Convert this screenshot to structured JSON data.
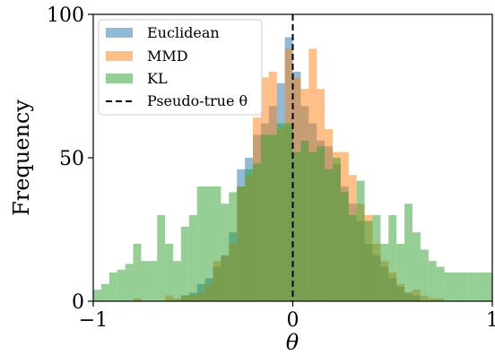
{
  "chart_data": {
    "type": "histogram",
    "xlabel": "θ",
    "ylabel": "Frequency",
    "xlim": [
      -1,
      1
    ],
    "ylim": [
      0,
      100
    ],
    "x_ticks": [
      -1,
      0,
      1
    ],
    "x_tick_labels": [
      "−1",
      "0",
      "1"
    ],
    "y_ticks": [
      0,
      50,
      100
    ],
    "y_tick_labels": [
      "0",
      "50",
      "100"
    ],
    "grid": false,
    "legend_position": "top-left",
    "reference_line": {
      "x": 0,
      "style": "dashed",
      "color": "#000000",
      "label": "Pseudo-true θ"
    },
    "series": [
      {
        "name": "Euclidean",
        "color": "#1f77b4",
        "bins": [
          {
            "x0": -0.56,
            "x1": -0.52,
            "count": 2
          },
          {
            "x0": -0.52,
            "x1": -0.48,
            "count": 3
          },
          {
            "x0": -0.48,
            "x1": -0.44,
            "count": 6
          },
          {
            "x0": -0.44,
            "x1": -0.4,
            "count": 8
          },
          {
            "x0": -0.4,
            "x1": -0.36,
            "count": 12
          },
          {
            "x0": -0.36,
            "x1": -0.32,
            "count": 16
          },
          {
            "x0": -0.32,
            "x1": -0.28,
            "count": 24
          },
          {
            "x0": -0.28,
            "x1": -0.24,
            "count": 46
          },
          {
            "x0": -0.24,
            "x1": -0.2,
            "count": 50
          },
          {
            "x0": -0.2,
            "x1": -0.16,
            "count": 58
          },
          {
            "x0": -0.16,
            "x1": -0.12,
            "count": 62
          },
          {
            "x0": -0.12,
            "x1": -0.08,
            "count": 68
          },
          {
            "x0": -0.08,
            "x1": -0.04,
            "count": 76
          },
          {
            "x0": -0.04,
            "x1": 0.0,
            "count": 92
          },
          {
            "x0": 0.0,
            "x1": 0.04,
            "count": 80
          },
          {
            "x0": 0.04,
            "x1": 0.08,
            "count": 68
          },
          {
            "x0": 0.08,
            "x1": 0.12,
            "count": 62
          },
          {
            "x0": 0.12,
            "x1": 0.16,
            "count": 56
          },
          {
            "x0": 0.16,
            "x1": 0.2,
            "count": 54
          },
          {
            "x0": 0.2,
            "x1": 0.24,
            "count": 48
          },
          {
            "x0": 0.24,
            "x1": 0.28,
            "count": 40
          },
          {
            "x0": 0.28,
            "x1": 0.32,
            "count": 34
          },
          {
            "x0": 0.32,
            "x1": 0.36,
            "count": 28
          },
          {
            "x0": 0.36,
            "x1": 0.4,
            "count": 20
          },
          {
            "x0": 0.4,
            "x1": 0.44,
            "count": 16
          },
          {
            "x0": 0.44,
            "x1": 0.48,
            "count": 12
          },
          {
            "x0": 0.48,
            "x1": 0.52,
            "count": 8
          },
          {
            "x0": 0.52,
            "x1": 0.56,
            "count": 5
          },
          {
            "x0": 0.56,
            "x1": 0.6,
            "count": 3
          },
          {
            "x0": 0.6,
            "x1": 0.64,
            "count": 2
          }
        ]
      },
      {
        "name": "MMD",
        "color": "#ff7f0e",
        "bins": [
          {
            "x0": -0.8,
            "x1": -0.76,
            "count": 1
          },
          {
            "x0": -0.64,
            "x1": -0.6,
            "count": 2
          },
          {
            "x0": -0.6,
            "x1": -0.56,
            "count": 1
          },
          {
            "x0": -0.56,
            "x1": -0.52,
            "count": 2
          },
          {
            "x0": -0.52,
            "x1": -0.48,
            "count": 2
          },
          {
            "x0": -0.48,
            "x1": -0.44,
            "count": 3
          },
          {
            "x0": -0.44,
            "x1": -0.4,
            "count": 6
          },
          {
            "x0": -0.4,
            "x1": -0.36,
            "count": 14
          },
          {
            "x0": -0.36,
            "x1": -0.32,
            "count": 16
          },
          {
            "x0": -0.32,
            "x1": -0.28,
            "count": 20
          },
          {
            "x0": -0.28,
            "x1": -0.24,
            "count": 40
          },
          {
            "x0": -0.24,
            "x1": -0.2,
            "count": 44
          },
          {
            "x0": -0.2,
            "x1": -0.16,
            "count": 64
          },
          {
            "x0": -0.16,
            "x1": -0.12,
            "count": 78
          },
          {
            "x0": -0.12,
            "x1": -0.08,
            "count": 80
          },
          {
            "x0": -0.08,
            "x1": -0.04,
            "count": 60
          },
          {
            "x0": -0.04,
            "x1": 0.0,
            "count": 88
          },
          {
            "x0": 0.0,
            "x1": 0.04,
            "count": 78
          },
          {
            "x0": 0.04,
            "x1": 0.08,
            "count": 74
          },
          {
            "x0": 0.08,
            "x1": 0.12,
            "count": 88
          },
          {
            "x0": 0.12,
            "x1": 0.16,
            "count": 74
          },
          {
            "x0": 0.16,
            "x1": 0.2,
            "count": 60
          },
          {
            "x0": 0.2,
            "x1": 0.24,
            "count": 52
          },
          {
            "x0": 0.24,
            "x1": 0.28,
            "count": 52
          },
          {
            "x0": 0.28,
            "x1": 0.32,
            "count": 44
          },
          {
            "x0": 0.32,
            "x1": 0.36,
            "count": 34
          },
          {
            "x0": 0.36,
            "x1": 0.4,
            "count": 30
          },
          {
            "x0": 0.4,
            "x1": 0.44,
            "count": 20
          },
          {
            "x0": 0.44,
            "x1": 0.48,
            "count": 14
          },
          {
            "x0": 0.48,
            "x1": 0.52,
            "count": 10
          },
          {
            "x0": 0.52,
            "x1": 0.56,
            "count": 6
          },
          {
            "x0": 0.56,
            "x1": 0.6,
            "count": 3
          },
          {
            "x0": 0.6,
            "x1": 0.64,
            "count": 4
          },
          {
            "x0": 0.64,
            "x1": 0.68,
            "count": 2
          },
          {
            "x0": 0.68,
            "x1": 0.72,
            "count": 1
          },
          {
            "x0": 0.72,
            "x1": 0.76,
            "count": 1
          }
        ]
      },
      {
        "name": "KL",
        "color": "#2ca02c",
        "bins": [
          {
            "x0": -1.0,
            "x1": -0.96,
            "count": 4
          },
          {
            "x0": -0.96,
            "x1": -0.92,
            "count": 6
          },
          {
            "x0": -0.92,
            "x1": -0.88,
            "count": 10
          },
          {
            "x0": -0.88,
            "x1": -0.84,
            "count": 11
          },
          {
            "x0": -0.84,
            "x1": -0.8,
            "count": 13
          },
          {
            "x0": -0.8,
            "x1": -0.76,
            "count": 20
          },
          {
            "x0": -0.76,
            "x1": -0.72,
            "count": 14
          },
          {
            "x0": -0.72,
            "x1": -0.68,
            "count": 14
          },
          {
            "x0": -0.68,
            "x1": -0.64,
            "count": 30
          },
          {
            "x0": -0.64,
            "x1": -0.6,
            "count": 20
          },
          {
            "x0": -0.6,
            "x1": -0.56,
            "count": 14
          },
          {
            "x0": -0.56,
            "x1": -0.52,
            "count": 26
          },
          {
            "x0": -0.52,
            "x1": -0.48,
            "count": 30
          },
          {
            "x0": -0.48,
            "x1": -0.44,
            "count": 40
          },
          {
            "x0": -0.44,
            "x1": -0.4,
            "count": 40
          },
          {
            "x0": -0.4,
            "x1": -0.36,
            "count": 40
          },
          {
            "x0": -0.36,
            "x1": -0.32,
            "count": 34
          },
          {
            "x0": -0.32,
            "x1": -0.28,
            "count": 38
          },
          {
            "x0": -0.28,
            "x1": -0.24,
            "count": 40
          },
          {
            "x0": -0.24,
            "x1": -0.2,
            "count": 46
          },
          {
            "x0": -0.2,
            "x1": -0.16,
            "count": 48
          },
          {
            "x0": -0.16,
            "x1": -0.12,
            "count": 58
          },
          {
            "x0": -0.12,
            "x1": -0.08,
            "count": 58
          },
          {
            "x0": -0.08,
            "x1": -0.04,
            "count": 62
          },
          {
            "x0": -0.04,
            "x1": 0.0,
            "count": 62
          },
          {
            "x0": 0.0,
            "x1": 0.04,
            "count": 52
          },
          {
            "x0": 0.04,
            "x1": 0.08,
            "count": 56
          },
          {
            "x0": 0.08,
            "x1": 0.12,
            "count": 52
          },
          {
            "x0": 0.12,
            "x1": 0.16,
            "count": 54
          },
          {
            "x0": 0.16,
            "x1": 0.2,
            "count": 46
          },
          {
            "x0": 0.2,
            "x1": 0.24,
            "count": 50
          },
          {
            "x0": 0.24,
            "x1": 0.28,
            "count": 38
          },
          {
            "x0": 0.28,
            "x1": 0.32,
            "count": 30
          },
          {
            "x0": 0.32,
            "x1": 0.36,
            "count": 42
          },
          {
            "x0": 0.36,
            "x1": 0.4,
            "count": 28
          },
          {
            "x0": 0.4,
            "x1": 0.44,
            "count": 30
          },
          {
            "x0": 0.44,
            "x1": 0.48,
            "count": 20
          },
          {
            "x0": 0.48,
            "x1": 0.52,
            "count": 30
          },
          {
            "x0": 0.52,
            "x1": 0.56,
            "count": 20
          },
          {
            "x0": 0.56,
            "x1": 0.6,
            "count": 34
          },
          {
            "x0": 0.6,
            "x1": 0.64,
            "count": 24
          },
          {
            "x0": 0.64,
            "x1": 0.68,
            "count": 18
          },
          {
            "x0": 0.68,
            "x1": 0.72,
            "count": 14
          },
          {
            "x0": 0.72,
            "x1": 0.76,
            "count": 12
          },
          {
            "x0": 0.76,
            "x1": 0.8,
            "count": 10
          },
          {
            "x0": 0.8,
            "x1": 0.84,
            "count": 10
          },
          {
            "x0": 0.84,
            "x1": 0.88,
            "count": 10
          },
          {
            "x0": 0.88,
            "x1": 0.92,
            "count": 10
          },
          {
            "x0": 0.92,
            "x1": 0.96,
            "count": 10
          },
          {
            "x0": 0.96,
            "x1": 1.0,
            "count": 10
          }
        ]
      }
    ]
  }
}
